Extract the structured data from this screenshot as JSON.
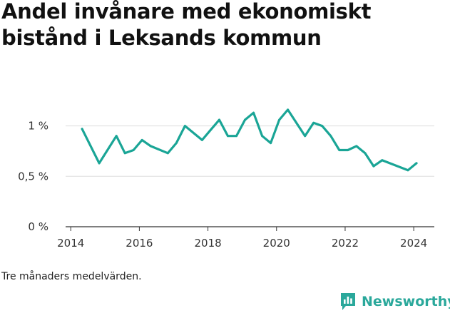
{
  "title": "Andel invånare med ekonomiskt bistånd i Leksands kommun",
  "footnote": "Tre månaders medelvärden.",
  "brand": {
    "name": "Newsworthy",
    "icon": "newsworthy-logo-icon",
    "color": "#2aa89b"
  },
  "colors": {
    "line": "#1aa596",
    "grid": "#dddddd",
    "axis": "#333333"
  },
  "chart_data": {
    "type": "line",
    "title": "Andel invånare med ekonomiskt bistånd i Leksands kommun",
    "xlabel": "",
    "ylabel": "",
    "xlim": [
      2013.85,
      2024.6
    ],
    "ylim": [
      0,
      1.4
    ],
    "grid": "horizontal",
    "legend": "none",
    "x_ticks": [
      2014,
      2016,
      2018,
      2020,
      2022,
      2024
    ],
    "x_tick_labels": [
      "2014",
      "2016",
      "2018",
      "2020",
      "2022",
      "2024"
    ],
    "y_ticks": [
      0,
      0.5,
      1
    ],
    "y_tick_labels": [
      "0 %",
      "0,5 %",
      "1 %"
    ],
    "series": [
      {
        "values": [
          [
            2014.33,
            0.97
          ],
          [
            2014.83,
            0.63
          ],
          [
            2015.33,
            0.9
          ],
          [
            2015.58,
            0.73
          ],
          [
            2015.83,
            0.76
          ],
          [
            2016.08,
            0.86
          ],
          [
            2016.33,
            0.8
          ],
          [
            2016.83,
            0.73
          ],
          [
            2017.08,
            0.83
          ],
          [
            2017.33,
            1.0
          ],
          [
            2017.83,
            0.86
          ],
          [
            2018.08,
            0.96
          ],
          [
            2018.33,
            1.06
          ],
          [
            2018.58,
            0.9
          ],
          [
            2018.83,
            0.9
          ],
          [
            2019.08,
            1.06
          ],
          [
            2019.33,
            1.13
          ],
          [
            2019.58,
            0.9
          ],
          [
            2019.83,
            0.83
          ],
          [
            2020.08,
            1.06
          ],
          [
            2020.33,
            1.16
          ],
          [
            2020.83,
            0.9
          ],
          [
            2021.08,
            1.03
          ],
          [
            2021.33,
            1.0
          ],
          [
            2021.58,
            0.9
          ],
          [
            2021.83,
            0.76
          ],
          [
            2022.08,
            0.76
          ],
          [
            2022.33,
            0.8
          ],
          [
            2022.58,
            0.73
          ],
          [
            2022.83,
            0.6
          ],
          [
            2023.08,
            0.66
          ],
          [
            2023.83,
            0.56
          ],
          [
            2024.08,
            0.63
          ]
        ]
      }
    ]
  }
}
